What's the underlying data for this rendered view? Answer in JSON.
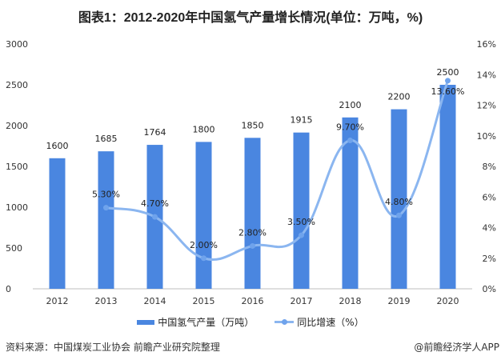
{
  "title": "图表1：2012-2020年中国氢气产量增长情况(单位：万吨，%)",
  "chart_data": {
    "type": "bar+line",
    "title": "图表1：2012-2020年中国氢气产量增长情况(单位：万吨，%)",
    "categories": [
      "2012",
      "2013",
      "2014",
      "2015",
      "2016",
      "2017",
      "2018",
      "2019",
      "2020"
    ],
    "series": [
      {
        "name": "中国氢气产量（万吨）",
        "type": "bar",
        "axis": "left",
        "color": "#4a86e0",
        "values": [
          1600,
          1685,
          1764,
          1800,
          1850,
          1915,
          2100,
          2200,
          2500
        ],
        "labels": [
          "1600",
          "1685",
          "1764",
          "1800",
          "1850",
          "1915",
          "2100",
          "2200",
          "2500"
        ]
      },
      {
        "name": "同比增速（%）",
        "type": "line",
        "axis": "right",
        "smooth": true,
        "color": "#8bb6f0",
        "values": [
          null,
          5.3,
          4.7,
          2.0,
          2.8,
          3.5,
          9.7,
          4.8,
          13.6
        ],
        "labels": [
          "",
          "5.30%",
          "4.70%",
          "2.00%",
          "2.80%",
          "3.50%",
          "9.70%",
          "4.80%",
          "13.60%"
        ]
      }
    ],
    "y_left": {
      "range": [
        0,
        3000
      ],
      "ticks": [
        "0",
        "500",
        "1000",
        "1500",
        "2000",
        "2500",
        "3000"
      ]
    },
    "y_right": {
      "range": [
        0,
        16
      ],
      "ticks": [
        "0%",
        "2%",
        "4%",
        "6%",
        "8%",
        "10%",
        "12%",
        "14%",
        "16%"
      ]
    },
    "grid": false,
    "legend": "bottom"
  },
  "legend": {
    "bar": "中国氢气产量（万吨）",
    "line": "同比增速（%）"
  },
  "footer": {
    "source": "资料来源：中国煤炭工业协会 前瞻产业研究院整理",
    "brand": "@前瞻经济学人APP"
  }
}
